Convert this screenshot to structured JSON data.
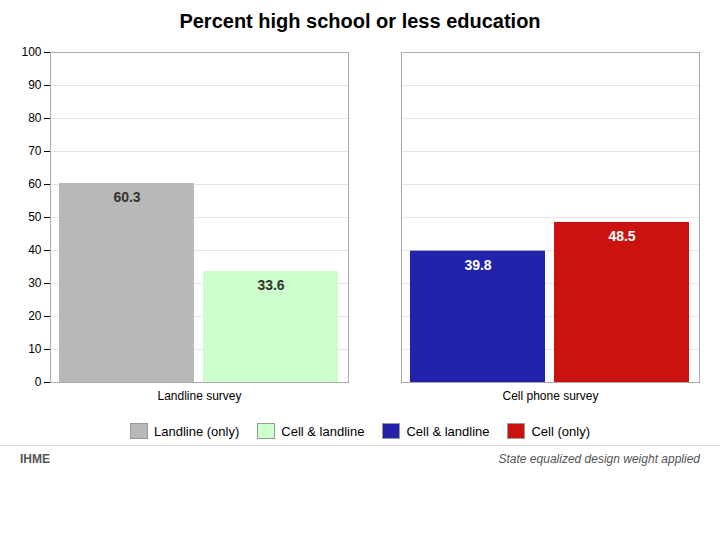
{
  "chart_data": {
    "type": "bar",
    "title": "Percent high school or less education",
    "categories": [
      "Landline survey",
      "Cell phone survey"
    ],
    "series": [
      {
        "name": "Landline (only)",
        "color": "#b8b8b8",
        "values": [
          60.3,
          null
        ]
      },
      {
        "name": "Cell & landline",
        "color": "#ccffcc",
        "values": [
          33.6,
          null
        ]
      },
      {
        "name": "Cell & landline",
        "color": "#2222aa",
        "values": [
          null,
          39.8
        ]
      },
      {
        "name": "Cell (only)",
        "color": "#cc1111",
        "values": [
          null,
          48.5
        ]
      }
    ],
    "ylim": [
      0,
      100
    ],
    "yticks": [
      0,
      10,
      20,
      30,
      40,
      50,
      60,
      70,
      80,
      90,
      100
    ],
    "grid": true,
    "legend": "bottom",
    "data_labels": true,
    "annotations": [
      "IHME",
      "State equalized design weight applied"
    ]
  }
}
